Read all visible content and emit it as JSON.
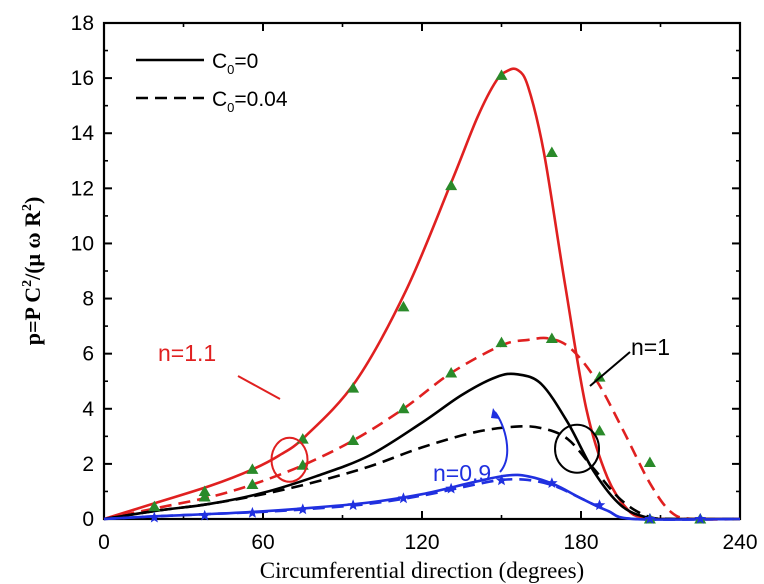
{
  "chart_data": {
    "type": "line",
    "xlabel": "Circumferential direction (degrees)",
    "ylabel": {
      "main": "p=P C",
      "sup": "2",
      "tail": "/(μ ω R",
      "sup2": "2",
      "end": ")"
    },
    "xlim": [
      0,
      240
    ],
    "ylim": [
      0,
      18
    ],
    "xticks": [
      0,
      60,
      120,
      180,
      240
    ],
    "yticks": [
      0,
      2,
      4,
      6,
      8,
      10,
      12,
      14,
      16,
      18
    ],
    "grid": false,
    "legend_position": "top-left",
    "legend": [
      {
        "main": "C",
        "sub": "0",
        "rest": "=0",
        "dash": "solid"
      },
      {
        "main": "C",
        "sub": "0",
        "rest": "=0.04",
        "dash": "dashed"
      }
    ],
    "annotations": [
      {
        "text": "n=1.1",
        "color": "#e02020"
      },
      {
        "text": "n=1",
        "color": "#000000"
      },
      {
        "text": "n=0.9",
        "color": "#2030e0"
      }
    ],
    "series": [
      {
        "color": "#e02020",
        "dash": "solid",
        "x": [
          0,
          20,
          40,
          56,
          66,
          76,
          95,
          114,
          131,
          141,
          148,
          152,
          156,
          160,
          166,
          174,
          182,
          190,
          198,
          204,
          210,
          240
        ],
        "y": [
          0,
          0.6,
          1.2,
          1.8,
          2.3,
          3.0,
          5.0,
          8.3,
          12.2,
          14.6,
          15.9,
          16.25,
          16.3,
          15.7,
          13.3,
          8.5,
          4.0,
          1.5,
          0.3,
          0.05,
          0,
          0
        ]
      },
      {
        "color": "#e02020",
        "dash": "dashed",
        "x": [
          0,
          20,
          40,
          56,
          75,
          94,
          113,
          131,
          150,
          160,
          168,
          176,
          186,
          196,
          206,
          214,
          222,
          240
        ],
        "y": [
          0,
          0.4,
          0.8,
          1.25,
          1.95,
          2.85,
          4.0,
          5.3,
          6.3,
          6.5,
          6.55,
          6.2,
          5.0,
          3.2,
          1.3,
          0.25,
          0,
          0
        ]
      },
      {
        "color": "#000000",
        "dash": "solid",
        "x": [
          0,
          20,
          40,
          60,
          80,
          100,
          120,
          135,
          148,
          156,
          165,
          175,
          185,
          195,
          205,
          215,
          240
        ],
        "y": [
          0,
          0.3,
          0.55,
          0.95,
          1.55,
          2.3,
          3.5,
          4.5,
          5.15,
          5.25,
          4.9,
          3.5,
          1.7,
          0.5,
          0.05,
          0,
          0
        ]
      },
      {
        "color": "#000000",
        "dash": "dashed",
        "x": [
          0,
          20,
          40,
          60,
          80,
          100,
          120,
          140,
          155,
          165,
          175,
          185,
          195,
          205,
          215,
          240
        ],
        "y": [
          0,
          0.3,
          0.55,
          0.9,
          1.35,
          1.9,
          2.6,
          3.15,
          3.35,
          3.3,
          2.9,
          1.8,
          0.7,
          0.1,
          0,
          0
        ]
      },
      {
        "color": "#2030e0",
        "dash": "solid",
        "x": [
          0,
          20,
          40,
          60,
          80,
          100,
          120,
          140,
          152,
          160,
          170,
          180,
          190,
          200,
          240
        ],
        "y": [
          0,
          0.1,
          0.18,
          0.28,
          0.42,
          0.6,
          0.9,
          1.35,
          1.58,
          1.55,
          1.25,
          0.75,
          0.3,
          0,
          0
        ]
      },
      {
        "color": "#2030e0",
        "dash": "dashed",
        "x": [
          0,
          20,
          40,
          60,
          80,
          100,
          120,
          140,
          150,
          160,
          170,
          180,
          190,
          200,
          240
        ],
        "y": [
          0,
          0.1,
          0.18,
          0.26,
          0.38,
          0.55,
          0.85,
          1.25,
          1.42,
          1.42,
          1.2,
          0.75,
          0.3,
          0,
          0
        ]
      }
    ],
    "markers": [
      {
        "shape": "triangle",
        "color": "#2a8a2a",
        "points": [
          [
            19,
            0.45
          ],
          [
            38,
            1.0
          ],
          [
            56,
            1.8
          ],
          [
            75,
            2.9
          ],
          [
            94,
            4.75
          ],
          [
            113,
            7.7
          ],
          [
            131,
            12.1
          ],
          [
            150,
            16.1
          ],
          [
            169,
            13.3
          ],
          [
            187,
            3.2
          ],
          [
            206,
            0
          ],
          [
            225,
            0
          ],
          [
            38,
            0.8
          ],
          [
            56,
            1.25
          ],
          [
            75,
            1.95
          ],
          [
            94,
            2.85
          ],
          [
            113,
            4.0
          ],
          [
            131,
            5.3
          ],
          [
            150,
            6.4
          ],
          [
            169,
            6.55
          ],
          [
            187,
            5.15
          ],
          [
            206,
            2.05
          ]
        ]
      },
      {
        "shape": "star",
        "color": "#2030e0",
        "points": [
          [
            19,
            0.05
          ],
          [
            38,
            0.12
          ],
          [
            56,
            0.22
          ],
          [
            75,
            0.35
          ],
          [
            94,
            0.5
          ],
          [
            113,
            0.75
          ],
          [
            131,
            1.1
          ],
          [
            150,
            1.4
          ],
          [
            169,
            1.3
          ],
          [
            187,
            0.5
          ],
          [
            206,
            0
          ],
          [
            225,
            0
          ]
        ]
      }
    ]
  }
}
